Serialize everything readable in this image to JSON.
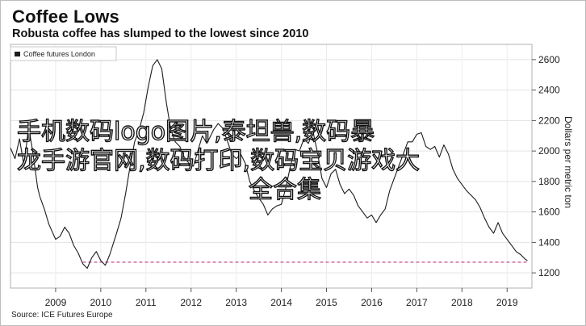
{
  "chart_data": {
    "type": "line",
    "title": "Coffee Lows",
    "subtitle": "Robusta coffee has slumped to the lowest since 2010",
    "ylabel": "Dollars per metric ton",
    "source": "Source: ICE Futures Europe",
    "ylim": [
      1100,
      2700
    ],
    "xlim": [
      2008.0,
      2019.55
    ],
    "y_ticks": [
      1200,
      1400,
      1600,
      1800,
      2000,
      2200,
      2400,
      2600
    ],
    "y_tick_labels": [
      "1200",
      "1400",
      "1600",
      "1800",
      "2000",
      "2200",
      "2400",
      "2600"
    ],
    "x_ticks": [
      2009,
      2010,
      2011,
      2012,
      2013,
      2014,
      2015,
      2016,
      2017,
      2018,
      2019
    ],
    "x_tick_labels": [
      "2009",
      "2010",
      "2011",
      "2012",
      "2013",
      "2014",
      "2015",
      "2016",
      "2017",
      "2018",
      "2019"
    ],
    "grid": true,
    "legend": "top-left",
    "series": [
      {
        "name": "Coffee futures London",
        "color": "#1c1c1c",
        "x": [
          2008.0,
          2008.1,
          2008.2,
          2008.3,
          2008.4,
          2008.5,
          2008.6,
          2008.65,
          2008.75,
          2008.85,
          2009.0,
          2009.1,
          2009.2,
          2009.3,
          2009.4,
          2009.5,
          2009.6,
          2009.7,
          2009.8,
          2009.9,
          2010.0,
          2010.1,
          2010.2,
          2010.35,
          2010.45,
          2010.55,
          2010.65,
          2010.75,
          2010.85,
          2010.95,
          2011.05,
          2011.15,
          2011.25,
          2011.35,
          2011.45,
          2011.55,
          2011.65,
          2011.75,
          2011.85,
          2011.95,
          2012.05,
          2012.15,
          2012.25,
          2012.35,
          2012.5,
          2012.6,
          2012.7,
          2012.8,
          2012.9,
          2013.0,
          2013.1,
          2013.2,
          2013.3,
          2013.4,
          2013.5,
          2013.6,
          2013.7,
          2013.8,
          2013.9,
          2014.0,
          2014.1,
          2014.2,
          2014.3,
          2014.4,
          2014.5,
          2014.6,
          2014.7,
          2014.8,
          2014.9,
          2015.0,
          2015.1,
          2015.2,
          2015.3,
          2015.4,
          2015.5,
          2015.6,
          2015.7,
          2015.8,
          2015.9,
          2016.0,
          2016.1,
          2016.2,
          2016.3,
          2016.4,
          2016.5,
          2016.6,
          2016.7,
          2016.8,
          2016.9,
          2017.0,
          2017.1,
          2017.2,
          2017.3,
          2017.4,
          2017.5,
          2017.6,
          2017.7,
          2017.8,
          2017.9,
          2018.0,
          2018.1,
          2018.2,
          2018.3,
          2018.4,
          2018.5,
          2018.6,
          2018.7,
          2018.8,
          2018.9,
          2019.0,
          2019.1,
          2019.2,
          2019.3,
          2019.4,
          2019.45
        ],
        "values": [
          2020,
          1950,
          2080,
          1900,
          2160,
          1980,
          1760,
          1700,
          1620,
          1520,
          1420,
          1440,
          1500,
          1460,
          1380,
          1330,
          1260,
          1230,
          1300,
          1340,
          1280,
          1250,
          1320,
          1460,
          1560,
          1720,
          1900,
          2060,
          2140,
          2250,
          2420,
          2560,
          2600,
          2540,
          2320,
          2140,
          2060,
          2030,
          1960,
          1920,
          1900,
          2000,
          2100,
          2050,
          2140,
          2180,
          2150,
          2070,
          1980,
          1950,
          1980,
          1920,
          1800,
          1740,
          1690,
          1650,
          1580,
          1620,
          1640,
          1650,
          1760,
          1900,
          2010,
          2000,
          2080,
          2050,
          2130,
          1990,
          1820,
          1760,
          1850,
          1880,
          1780,
          1720,
          1750,
          1710,
          1640,
          1600,
          1560,
          1580,
          1530,
          1580,
          1620,
          1740,
          1820,
          1900,
          1980,
          2060,
          2060,
          2110,
          2120,
          2030,
          2010,
          2030,
          1960,
          2040,
          1980,
          1880,
          1820,
          1780,
          1740,
          1710,
          1680,
          1630,
          1560,
          1500,
          1460,
          1530,
          1460,
          1420,
          1380,
          1340,
          1320,
          1290,
          1280
        ]
      }
    ],
    "reference_line": {
      "y": 1270,
      "x_start": 2009.6,
      "x_end": 2019.45,
      "color": "#c0387d"
    }
  },
  "overlay_text": {
    "line1": "手机数码logo图片,泰坦兽,数码暴",
    "line2": "龙手游官网,数码打印,数码宝贝游戏大",
    "line3": "全合集"
  }
}
